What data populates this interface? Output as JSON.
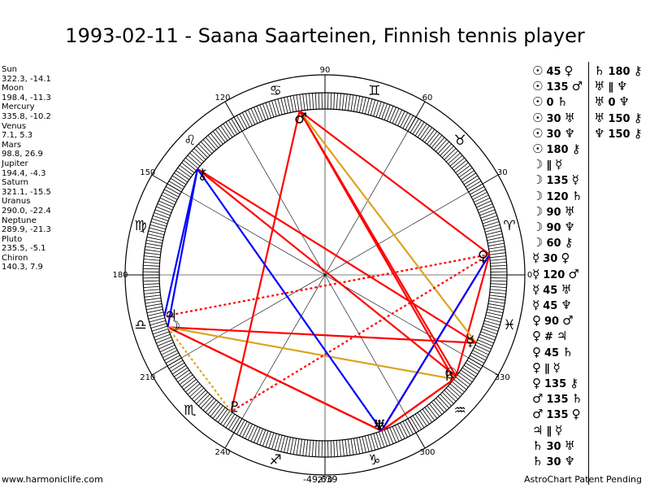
{
  "title": "1993-02-11 - Saana Saarteinen, Finnish tennis player",
  "planets": [
    {
      "name": "Sun",
      "values": "322.3, -14.1",
      "glyph": "☉"
    },
    {
      "name": "Moon",
      "values": "198.4, -11.3",
      "glyph": "☽"
    },
    {
      "name": "Mercury",
      "values": "335.8, -10.2",
      "glyph": "☿"
    },
    {
      "name": "Venus",
      "values": "7.1, 5.3",
      "glyph": "♀"
    },
    {
      "name": "Mars",
      "values": "98.8, 26.9",
      "glyph": "♂"
    },
    {
      "name": "Jupiter",
      "values": "194.4, -4.3",
      "glyph": "♃"
    },
    {
      "name": "Saturn",
      "values": "321.1, -15.5",
      "glyph": "♄"
    },
    {
      "name": "Uranus",
      "values": "290.0, -22.4",
      "glyph": "♅"
    },
    {
      "name": "Neptune",
      "values": "289.9, -21.3",
      "glyph": "♆"
    },
    {
      "name": "Pluto",
      "values": "235.5, -5.1",
      "glyph": "♇"
    },
    {
      "name": "Chiron",
      "values": "140.3, 7.9",
      "glyph": "⚷"
    }
  ],
  "degree_labels": [
    "0",
    "30",
    "60",
    "90",
    "120",
    "150",
    "180",
    "210",
    "240",
    "270",
    "300",
    "330"
  ],
  "zodiac_signs": [
    {
      "glyph": "♈",
      "mid": 15
    },
    {
      "glyph": "♉",
      "mid": 45
    },
    {
      "glyph": "♊",
      "mid": 75
    },
    {
      "glyph": "♋",
      "mid": 105
    },
    {
      "glyph": "♌",
      "mid": 135
    },
    {
      "glyph": "♍",
      "mid": 165
    },
    {
      "glyph": "♎",
      "mid": 195
    },
    {
      "glyph": "♏",
      "mid": 225
    },
    {
      "glyph": "♐",
      "mid": 255
    },
    {
      "glyph": "♑",
      "mid": 285
    },
    {
      "glyph": "♒",
      "mid": 315
    },
    {
      "glyph": "♓",
      "mid": 345
    }
  ],
  "aspect_lines": [
    {
      "a": "Sun",
      "b": "Venus",
      "color": "#ff0000",
      "dotted": false
    },
    {
      "a": "Sun",
      "b": "Mars",
      "color": "#ff0000",
      "dotted": false
    },
    {
      "a": "Sun",
      "b": "Chiron",
      "color": "#ff0000",
      "dotted": false
    },
    {
      "a": "Moon",
      "b": "Mercury",
      "color": "#ff0000",
      "dotted": false
    },
    {
      "a": "Moon",
      "b": "Saturn",
      "color": "#daa520",
      "dotted": false
    },
    {
      "a": "Moon",
      "b": "Uranus",
      "color": "#ff0000",
      "dotted": false
    },
    {
      "a": "Moon",
      "b": "Neptune",
      "color": "#ff0000",
      "dotted": false
    },
    {
      "a": "Moon",
      "b": "Chiron",
      "color": "#0000ff",
      "dotted": false
    },
    {
      "a": "Mercury",
      "b": "Mars",
      "color": "#daa520",
      "dotted": false
    },
    {
      "a": "Mercury",
      "b": "Chiron",
      "color": "#ff0000",
      "dotted": false
    },
    {
      "a": "Venus",
      "b": "Mars",
      "color": "#ff0000",
      "dotted": false
    },
    {
      "a": "Venus",
      "b": "Jupiter",
      "color": "#ff0000",
      "dotted": true
    },
    {
      "a": "Venus",
      "b": "Uranus",
      "color": "#ff0000",
      "dotted": false
    },
    {
      "a": "Venus",
      "b": "Neptune",
      "color": "#0000ff",
      "dotted": false
    },
    {
      "a": "Venus",
      "b": "Pluto",
      "color": "#ff0000",
      "dotted": true
    },
    {
      "a": "Mars",
      "b": "Saturn",
      "color": "#ff0000",
      "dotted": false
    },
    {
      "a": "Mars",
      "b": "Pluto",
      "color": "#ff0000",
      "dotted": false
    },
    {
      "a": "Jupiter",
      "b": "Chiron",
      "color": "#0000ff",
      "dotted": false
    },
    {
      "a": "Saturn",
      "b": "Uranus",
      "color": "#ff0000",
      "dotted": false
    },
    {
      "a": "Saturn",
      "b": "Neptune",
      "color": "#ff0000",
      "dotted": false
    },
    {
      "a": "Uranus",
      "b": "Chiron",
      "color": "#0000ff",
      "dotted": false
    },
    {
      "a": "Moon",
      "b": "Pluto",
      "color": "#daa520",
      "dotted": true
    }
  ],
  "aspects_col1": [
    {
      "p1": "☉",
      "angle": "45",
      "p2": "♀"
    },
    {
      "p1": "☉",
      "angle": "135",
      "p2": "♂"
    },
    {
      "p1": "☉",
      "angle": "0",
      "p2": "♄"
    },
    {
      "p1": "☉",
      "angle": "30",
      "p2": "♅"
    },
    {
      "p1": "☉",
      "angle": "30",
      "p2": "♆"
    },
    {
      "p1": "☉",
      "angle": "180",
      "p2": "⚷"
    },
    {
      "p1": "☽",
      "angle": "∥",
      "p2": "☿"
    },
    {
      "p1": "☽",
      "angle": "135",
      "p2": "☿"
    },
    {
      "p1": "☽",
      "angle": "120",
      "p2": "♄"
    },
    {
      "p1": "☽",
      "angle": "90",
      "p2": "♅"
    },
    {
      "p1": "☽",
      "angle": "90",
      "p2": "♆"
    },
    {
      "p1": "☽",
      "angle": "60",
      "p2": "⚷"
    },
    {
      "p1": "☿",
      "angle": "30",
      "p2": "♀"
    },
    {
      "p1": "☿",
      "angle": "120",
      "p2": "♂"
    },
    {
      "p1": "☿",
      "angle": "45",
      "p2": "♅"
    },
    {
      "p1": "☿",
      "angle": "45",
      "p2": "♆"
    },
    {
      "p1": "♀",
      "angle": "90",
      "p2": "♂"
    },
    {
      "p1": "♀",
      "angle": "#",
      "p2": "♃"
    },
    {
      "p1": "♀",
      "angle": "45",
      "p2": "♄"
    },
    {
      "p1": "♀",
      "angle": "∥",
      "p2": "☿"
    },
    {
      "p1": "♀",
      "angle": "135",
      "p2": "⚷"
    },
    {
      "p1": "♂",
      "angle": "135",
      "p2": "♄"
    },
    {
      "p1": "♂",
      "angle": "135",
      "p2": "♀"
    },
    {
      "p1": "♃",
      "angle": "∥",
      "p2": "☿"
    },
    {
      "p1": "♄",
      "angle": "30",
      "p2": "♅"
    },
    {
      "p1": "♄",
      "angle": "30",
      "p2": "♆"
    }
  ],
  "aspects_col2": [
    {
      "p1": "♄",
      "angle": "180",
      "p2": "⚷"
    },
    {
      "p1": "♅",
      "angle": "∥",
      "p2": "♆"
    },
    {
      "p1": "♅",
      "angle": "0",
      "p2": "♆"
    },
    {
      "p1": "♅",
      "angle": "150",
      "p2": "⚷"
    },
    {
      "p1": "♆",
      "angle": "150",
      "p2": "⚷"
    }
  ],
  "footer": {
    "left": "www.harmoniclife.com",
    "center": "-49,639",
    "right": "AstroChart Patent Pending"
  },
  "colors": {
    "red": "#ff0000",
    "blue": "#0000ff",
    "gold": "#daa520",
    "black": "#000000"
  }
}
